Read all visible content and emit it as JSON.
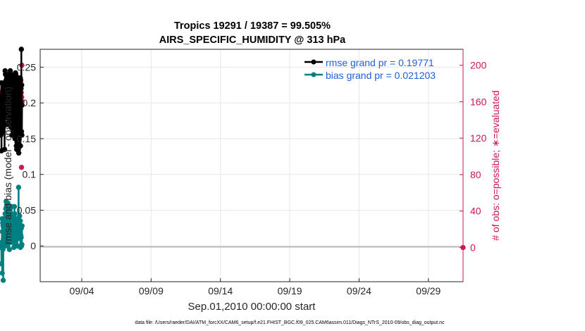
{
  "chart_data": {
    "type": "line",
    "title_line1": "Tropics 19291 / 19387 = 99.505%",
    "title_line2": "AIRS_SPECIFIC_HUMIDITY @ 313 hPa",
    "ylabel_left": "rmse and bias (model - observation)",
    "ylabel_right": "# of obs: o=possible; ∗=evaluated",
    "xlabel": "Sep.01,2010 00:00:00 start",
    "footer": "data file: /Users/raeder/DAI/ATM_forcXX/CAM6_setup/f.e21.FHIST_BGC.f09_025.CAM6assim.011/Diags_NTrS_2010-09/obs_diag_output.nc",
    "x_range_days": [
      1.0,
      31.5
    ],
    "ylim_left": [
      -0.05,
      0.275
    ],
    "ylim_right": [
      -37.5,
      217.5
    ],
    "left_ticks": [
      {
        "v": 0,
        "label": "0"
      },
      {
        "v": 0.05,
        "label": "0.05"
      },
      {
        "v": 0.1,
        "label": "0.1"
      },
      {
        "v": 0.15,
        "label": "0.15"
      },
      {
        "v": 0.2,
        "label": "0.2"
      },
      {
        "v": 0.25,
        "label": "0.25"
      }
    ],
    "right_ticks": [
      {
        "v": 0,
        "label": "0"
      },
      {
        "v": 40,
        "label": "40"
      },
      {
        "v": 80,
        "label": "80"
      },
      {
        "v": 120,
        "label": "120"
      },
      {
        "v": 160,
        "label": "160"
      },
      {
        "v": 200,
        "label": "200"
      }
    ],
    "x_ticks": [
      {
        "v": 4,
        "label": "09/04"
      },
      {
        "v": 9,
        "label": "09/09"
      },
      {
        "v": 14,
        "label": "09/14"
      },
      {
        "v": 19,
        "label": "09/19"
      },
      {
        "v": 24,
        "label": "09/24"
      },
      {
        "v": 29,
        "label": "09/29"
      }
    ],
    "legend": [
      {
        "label": "rmse grand pr = 0.19771",
        "color": "#000000"
      },
      {
        "label": "bias grand pr = 0.021203",
        "color": "#008080"
      }
    ],
    "series": [
      {
        "name": "rmse",
        "color": "#000000",
        "values": [
          0.155,
          0.205,
          0.157,
          0.228,
          0.133,
          0.195,
          0.17,
          0.21,
          0.165,
          0.18,
          0.16,
          0.215,
          0.2,
          0.22,
          0.16,
          0.225,
          0.175,
          0.228,
          0.2,
          0.222,
          0.17,
          0.215,
          0.135,
          0.215,
          0.17,
          0.245,
          0.195,
          0.24,
          0.2,
          0.24,
          0.195,
          0.232,
          0.18,
          0.238,
          0.195,
          0.22,
          0.185,
          0.232,
          0.17,
          0.225,
          0.185,
          0.232,
          0.17,
          0.228,
          0.2,
          0.232,
          0.19,
          0.24,
          0.2,
          0.225,
          0.21,
          0.23,
          0.195,
          0.235,
          0.2,
          0.245,
          0.19,
          0.24,
          0.18,
          0.235,
          0.175,
          0.225,
          0.165,
          0.215,
          0.155,
          0.22,
          0.18,
          0.228,
          0.17,
          0.222,
          0.2,
          0.225,
          0.17,
          0.228,
          0.19,
          0.225,
          0.165,
          0.232,
          0.17,
          0.235,
          0.18,
          0.24,
          0.15,
          0.232,
          0.16,
          0.242,
          0.175,
          0.24,
          0.155,
          0.232,
          0.14,
          0.225,
          0.135,
          0.23,
          0.145,
          0.235,
          0.175,
          0.23,
          0.18,
          0.225,
          0.175,
          0.22,
          0.135,
          0.215,
          0.13,
          0.225,
          0.14,
          0.235,
          0.16,
          0.228,
          0.17,
          0.232,
          0.165,
          0.235,
          0.14,
          0.232,
          0.155,
          0.22,
          0.16,
          0.275,
          0.16,
          0.225,
          0.155,
          0.197
        ]
      },
      {
        "name": "bias",
        "color": "#008080",
        "values": [
          0.0,
          0.002,
          -0.002,
          0.003,
          -0.025,
          0.005,
          0.0,
          0.038,
          -0.038,
          0.02,
          0.0,
          0.032,
          -0.005,
          0.028,
          -0.048,
          0.01,
          -0.002,
          0.025,
          0.0,
          0.035,
          0.02,
          0.03,
          0.025,
          0.035,
          0.01,
          0.045,
          0.012,
          0.04,
          0.025,
          0.052,
          0.035,
          0.062,
          0.005,
          0.055,
          0.03,
          0.045,
          0.002,
          0.05,
          0.015,
          0.035,
          0.0,
          0.06,
          0.025,
          0.045,
          0.015,
          0.055,
          0.01,
          0.05,
          0.02,
          0.04,
          -0.005,
          0.038,
          0.02,
          0.04,
          0.025,
          0.035,
          0.025,
          0.032,
          0.015,
          0.028,
          0.015,
          0.045,
          0.02,
          0.055,
          0.005,
          0.038,
          0.01,
          0.042,
          0.02,
          0.03,
          0.02,
          0.032,
          0.015,
          0.03,
          0.02,
          0.04,
          -0.002,
          0.04,
          0.015,
          0.055,
          0.02,
          0.045,
          0.01,
          0.035,
          0.002,
          0.02,
          0.005,
          0.022,
          0.01,
          0.025,
          0.015,
          0.035,
          0.025,
          0.032,
          0.02,
          0.025,
          0.0,
          0.038,
          0.01,
          0.032,
          0.015,
          0.028,
          0.015,
          0.082,
          0.02,
          0.03,
          0.025,
          0.035,
          0.02,
          0.042,
          0.025,
          0.03,
          0.015,
          0.035,
          -0.002,
          0.025,
          0.015,
          0.025,
          0.012,
          0.025,
          0.0,
          0.002,
          0.002,
          0.028
        ]
      }
    ],
    "obs_possible": {
      "name": "possible",
      "color": "#cc1458",
      "values": [
        165,
        162,
        158,
        165,
        153,
        162,
        168,
        135,
        140,
        172,
        152,
        163,
        168,
        138,
        132,
        145,
        165,
        150,
        165,
        175,
        150,
        180,
        145,
        162,
        178,
        175,
        150,
        168,
        165,
        155,
        168,
        160,
        180,
        168,
        165,
        152,
        155,
        160,
        155,
        162,
        172,
        165,
        162,
        175,
        145,
        170,
        168,
        158,
        172,
        180,
        170,
        172,
        175,
        155,
        182,
        175,
        172,
        165,
        162,
        165,
        175,
        180,
        150,
        165,
        172,
        182,
        170,
        175,
        165,
        155,
        168,
        180,
        160,
        170,
        168,
        172,
        165,
        158,
        150,
        168,
        175,
        165,
        172,
        168,
        155,
        175,
        168,
        180,
        165,
        172,
        175,
        160,
        158,
        165,
        145,
        170,
        168,
        172,
        155,
        160,
        165,
        178,
        168,
        180,
        175,
        162,
        178,
        170,
        175,
        160,
        170,
        175,
        168,
        182,
        162,
        175,
        160,
        170,
        88,
        165,
        200,
        160
      ]
    },
    "obs_evaluated": {
      "name": "evaluated",
      "color": "#cc1458",
      "values": [
        165,
        162,
        158,
        165,
        153,
        162,
        168,
        135,
        140,
        172,
        152,
        163,
        168,
        138,
        132,
        145,
        165,
        150,
        165,
        175,
        150,
        180,
        145,
        162,
        178,
        175,
        150,
        168,
        165,
        155,
        168,
        160,
        180,
        168,
        165,
        152,
        155,
        160,
        155,
        162,
        172,
        165,
        162,
        175,
        145,
        170,
        168,
        158,
        172,
        180,
        170,
        172,
        175,
        155,
        182,
        175,
        172,
        165,
        162,
        165,
        175,
        180,
        150,
        165,
        172,
        182,
        170,
        175,
        165,
        155,
        168,
        180,
        160,
        170,
        168,
        172,
        165,
        158,
        150,
        168,
        175,
        165,
        172,
        168,
        155,
        175,
        168,
        180,
        165,
        172,
        175,
        160,
        158,
        165,
        145,
        170,
        168,
        172,
        155,
        160,
        165,
        178,
        168,
        180,
        175,
        162,
        178,
        170,
        175,
        160,
        170,
        175,
        168,
        182,
        162,
        175,
        160,
        170,
        88,
        165,
        200,
        160
      ]
    },
    "obs_zero_marker": {
      "v": 0
    }
  }
}
